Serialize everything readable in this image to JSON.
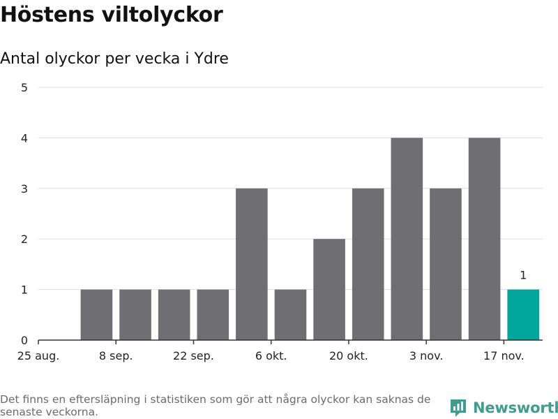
{
  "header": {
    "title": "Höstens viltolyckor",
    "subtitle": "Antal olyckor per vecka i Ydre"
  },
  "footer": {
    "note": "Det finns en eftersläpning i statistiken som gör att några olyckor kan saknas de senaste veckorna.",
    "brand": "Newsworthy"
  },
  "colors": {
    "bar": "#6f6e73",
    "highlight": "#00a59b",
    "grid": "#dddddd",
    "axis": "#333333",
    "brand": "#3e9c91"
  },
  "chart_data": {
    "type": "bar",
    "title": "Höstens viltolyckor",
    "subtitle": "Antal olyckor per vecka i Ydre",
    "xlabel": "",
    "ylabel": "",
    "ylim": [
      0,
      5
    ],
    "yticks": [
      0,
      1,
      2,
      3,
      4,
      5
    ],
    "grid": true,
    "x_tick_labels": [
      "25 aug.",
      "8 sep.",
      "22 sep.",
      "6 okt.",
      "20 okt.",
      "3 nov.",
      "17 nov."
    ],
    "values": [
      0,
      1,
      1,
      1,
      1,
      3,
      1,
      2,
      3,
      4,
      3,
      4,
      1
    ],
    "highlight_index": 12,
    "data_labels": [
      {
        "index": 12,
        "text": "1"
      }
    ]
  }
}
